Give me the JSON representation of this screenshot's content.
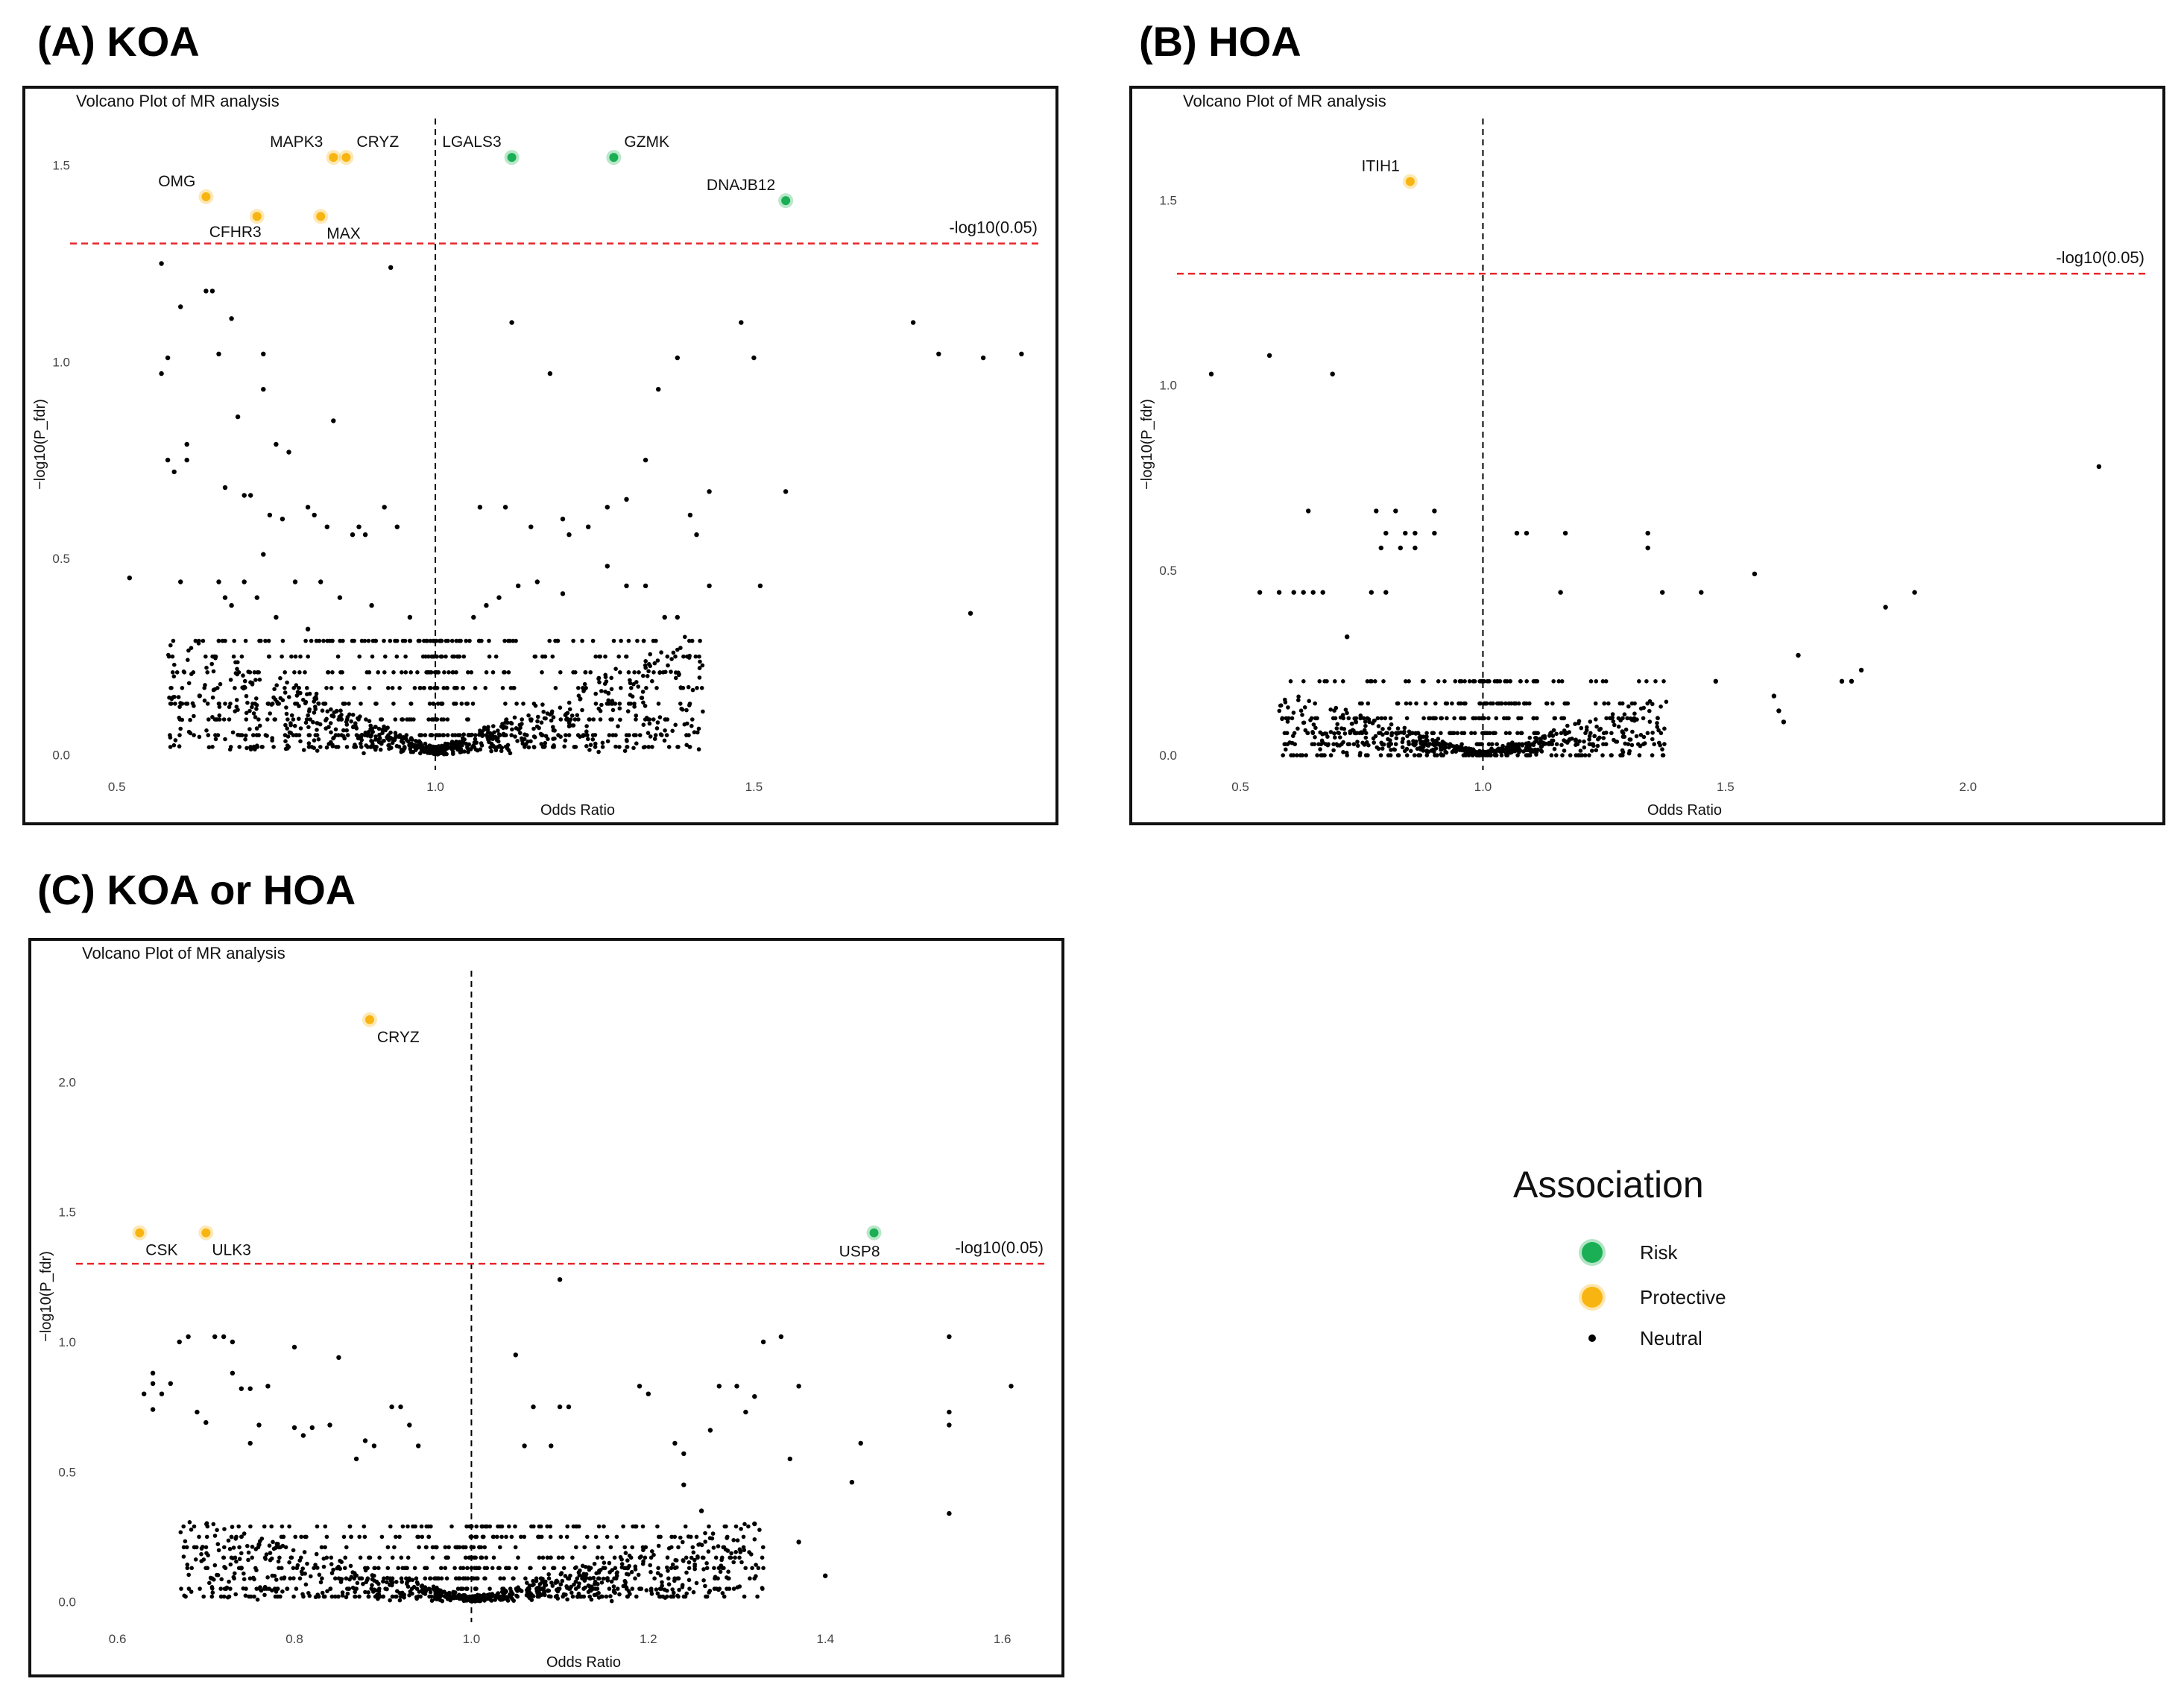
{
  "panels": {
    "a": {
      "label": "(A) KOA"
    },
    "b": {
      "label": "(B) HOA"
    },
    "c": {
      "label": "(C) KOA or HOA"
    }
  },
  "legend": {
    "title": "Association",
    "items": [
      {
        "key": "risk",
        "label": "Risk",
        "color": "#1aaf54"
      },
      {
        "key": "protective",
        "label": "Protective",
        "color": "#f8b512"
      },
      {
        "key": "neutral",
        "label": "Neutral",
        "color": "#000000"
      }
    ]
  },
  "chart_data": [
    {
      "id": "a",
      "type": "scatter",
      "title": "Volcano Plot of MR analysis",
      "xlabel": "Odds Ratio",
      "ylabel": "-log10(P_fdr)",
      "xlim": [
        0.45,
        1.95
      ],
      "ylim": [
        -0.02,
        1.6
      ],
      "xticks": [
        0.5,
        1.0,
        1.5
      ],
      "yticks": [
        0.0,
        0.5,
        1.0,
        1.5
      ],
      "vline_x": 1.0,
      "threshold": {
        "y": 1.301,
        "label": "-log10(0.05)"
      },
      "labeled_points": [
        {
          "gene": "MAPK3",
          "x": 0.84,
          "y": 1.52,
          "group": "protective",
          "label_pos": "above-left"
        },
        {
          "gene": "CRYZ",
          "x": 0.86,
          "y": 1.52,
          "group": "protective",
          "label_pos": "above-right"
        },
        {
          "gene": "LGALS3",
          "x": 1.12,
          "y": 1.52,
          "group": "risk",
          "label_pos": "above-left"
        },
        {
          "gene": "GZMK",
          "x": 1.28,
          "y": 1.52,
          "group": "risk",
          "label_pos": "above-right"
        },
        {
          "gene": "OMG",
          "x": 0.64,
          "y": 1.42,
          "group": "protective",
          "label_pos": "above-left"
        },
        {
          "gene": "DNAJB12",
          "x": 1.55,
          "y": 1.41,
          "group": "risk",
          "label_pos": "above-left"
        },
        {
          "gene": "CFHR3",
          "x": 0.72,
          "y": 1.37,
          "group": "protective",
          "label_pos": "below-left"
        },
        {
          "gene": "MAX",
          "x": 0.82,
          "y": 1.37,
          "group": "protective",
          "label_pos": "below-right"
        }
      ],
      "neutral_points": [
        [
          0.52,
          0.45
        ],
        [
          0.57,
          1.25
        ],
        [
          0.57,
          0.97
        ],
        [
          0.58,
          1.01
        ],
        [
          0.58,
          0.75
        ],
        [
          0.59,
          0.72
        ],
        [
          0.6,
          1.14
        ],
        [
          0.6,
          0.44
        ],
        [
          0.61,
          0.75
        ],
        [
          0.61,
          0.79
        ],
        [
          0.63,
          0.15
        ],
        [
          0.64,
          1.18
        ],
        [
          0.65,
          1.18
        ],
        [
          0.66,
          1.02
        ],
        [
          0.67,
          0.68
        ],
        [
          0.68,
          1.11
        ],
        [
          0.69,
          0.86
        ],
        [
          0.7,
          0.66
        ],
        [
          0.71,
          0.66
        ],
        [
          0.73,
          0.93
        ],
        [
          0.73,
          1.02
        ],
        [
          0.74,
          0.61
        ],
        [
          0.75,
          0.79
        ],
        [
          0.76,
          0.6
        ],
        [
          0.77,
          0.77
        ],
        [
          0.8,
          0.63
        ],
        [
          0.81,
          0.61
        ],
        [
          0.83,
          0.58
        ],
        [
          0.84,
          0.85
        ],
        [
          0.87,
          0.56
        ],
        [
          0.88,
          0.58
        ],
        [
          0.89,
          0.56
        ],
        [
          0.92,
          0.63
        ],
        [
          0.93,
          1.24
        ],
        [
          0.94,
          0.58
        ],
        [
          0.66,
          0.44
        ],
        [
          0.67,
          0.4
        ],
        [
          0.68,
          0.38
        ],
        [
          0.7,
          0.44
        ],
        [
          0.72,
          0.4
        ],
        [
          0.73,
          0.51
        ],
        [
          0.75,
          0.35
        ],
        [
          0.78,
          0.44
        ],
        [
          0.8,
          0.32
        ],
        [
          0.82,
          0.44
        ],
        [
          0.85,
          0.4
        ],
        [
          0.9,
          0.38
        ],
        [
          0.96,
          0.35
        ],
        [
          1.07,
          0.63
        ],
        [
          1.11,
          0.63
        ],
        [
          1.12,
          1.1
        ],
        [
          1.15,
          0.58
        ],
        [
          1.18,
          0.97
        ],
        [
          1.2,
          0.6
        ],
        [
          1.21,
          0.56
        ],
        [
          1.24,
          0.58
        ],
        [
          1.27,
          0.63
        ],
        [
          1.3,
          0.65
        ],
        [
          1.33,
          0.75
        ],
        [
          1.35,
          0.93
        ],
        [
          1.38,
          1.01
        ],
        [
          1.4,
          0.61
        ],
        [
          1.41,
          0.56
        ],
        [
          1.43,
          0.67
        ],
        [
          1.48,
          1.1
        ],
        [
          1.5,
          1.01
        ],
        [
          1.51,
          0.43
        ],
        [
          1.55,
          0.67
        ],
        [
          1.43,
          0.43
        ],
        [
          1.36,
          0.35
        ],
        [
          1.33,
          0.43
        ],
        [
          1.38,
          0.35
        ],
        [
          1.3,
          0.43
        ],
        [
          1.27,
          0.48
        ],
        [
          1.2,
          0.41
        ],
        [
          1.16,
          0.44
        ],
        [
          1.13,
          0.43
        ],
        [
          1.1,
          0.4
        ],
        [
          1.08,
          0.38
        ],
        [
          1.06,
          0.35
        ],
        [
          1.75,
          1.1
        ],
        [
          1.79,
          1.02
        ],
        [
          1.86,
          1.01
        ],
        [
          1.92,
          1.02
        ],
        [
          1.84,
          0.36
        ]
      ],
      "neutral_scatter_count": 1300
    },
    {
      "id": "b",
      "type": "scatter",
      "title": "Volcano Plot of MR analysis",
      "xlabel": "Odds Ratio",
      "ylabel": "-log10(P_fdr)",
      "xlim": [
        0.4,
        2.37
      ],
      "ylim": [
        -0.02,
        1.7
      ],
      "xticks": [
        0.5,
        1.0,
        1.5,
        2.0
      ],
      "yticks": [
        0.0,
        0.5,
        1.0,
        1.5
      ],
      "vline_x": 1.0,
      "threshold": {
        "y": 1.301,
        "label": "-log10(0.05)"
      },
      "labeled_points": [
        {
          "gene": "ITIH1",
          "x": 0.85,
          "y": 1.55,
          "group": "protective",
          "label_pos": "above-left"
        }
      ],
      "neutral_points": [
        [
          0.44,
          1.03
        ],
        [
          0.56,
          1.08
        ],
        [
          0.69,
          1.03
        ],
        [
          2.27,
          0.78
        ],
        [
          0.64,
          0.66
        ],
        [
          0.78,
          0.66
        ],
        [
          0.82,
          0.66
        ],
        [
          0.9,
          0.66
        ],
        [
          0.8,
          0.6
        ],
        [
          0.84,
          0.6
        ],
        [
          0.86,
          0.6
        ],
        [
          0.9,
          0.6
        ],
        [
          0.79,
          0.56
        ],
        [
          0.83,
          0.56
        ],
        [
          0.86,
          0.56
        ],
        [
          1.07,
          0.6
        ],
        [
          1.09,
          0.6
        ],
        [
          1.17,
          0.6
        ],
        [
          1.34,
          0.6
        ],
        [
          1.34,
          0.56
        ],
        [
          0.54,
          0.44
        ],
        [
          0.58,
          0.44
        ],
        [
          0.61,
          0.44
        ],
        [
          0.63,
          0.44
        ],
        [
          0.65,
          0.44
        ],
        [
          0.67,
          0.44
        ],
        [
          0.77,
          0.44
        ],
        [
          0.8,
          0.44
        ],
        [
          1.16,
          0.44
        ],
        [
          1.37,
          0.44
        ],
        [
          1.45,
          0.44
        ],
        [
          1.56,
          0.49
        ],
        [
          1.89,
          0.44
        ],
        [
          1.83,
          0.4
        ],
        [
          0.72,
          0.32
        ],
        [
          1.65,
          0.27
        ],
        [
          1.78,
          0.23
        ],
        [
          1.74,
          0.2
        ],
        [
          1.76,
          0.2
        ],
        [
          1.6,
          0.16
        ],
        [
          1.61,
          0.12
        ],
        [
          1.62,
          0.09
        ],
        [
          1.48,
          0.2
        ]
      ],
      "neutral_scatter_count": 900
    },
    {
      "id": "c",
      "type": "scatter",
      "title": "Volcano Plot of MR analysis",
      "xlabel": "Odds Ratio",
      "ylabel": "-log10(P_fdr)",
      "xlim": [
        0.57,
        1.65
      ],
      "ylim": [
        -0.05,
        2.4
      ],
      "xticks": [
        0.6,
        0.8,
        1.0,
        1.2,
        1.4,
        1.6
      ],
      "yticks": [
        0.0,
        0.5,
        1.0,
        1.5,
        2.0
      ],
      "vline_x": 1.0,
      "threshold": {
        "y": 1.301,
        "label": "-log10(0.05)"
      },
      "labeled_points": [
        {
          "gene": "CRYZ",
          "x": 0.885,
          "y": 2.24,
          "group": "protective",
          "label_pos": "below-right"
        },
        {
          "gene": "CSK",
          "x": 0.625,
          "y": 1.42,
          "group": "protective",
          "label_pos": "below-right"
        },
        {
          "gene": "ULK3",
          "x": 0.7,
          "y": 1.42,
          "group": "protective",
          "label_pos": "below-right"
        },
        {
          "gene": "USP8",
          "x": 1.455,
          "y": 1.42,
          "group": "risk",
          "label_pos": "below-left"
        }
      ],
      "neutral_points": [
        [
          0.63,
          0.8
        ],
        [
          0.64,
          0.88
        ],
        [
          0.64,
          0.84
        ],
        [
          0.64,
          0.74
        ],
        [
          0.65,
          0.8
        ],
        [
          0.66,
          0.84
        ],
        [
          0.67,
          1.0
        ],
        [
          0.68,
          1.02
        ],
        [
          0.69,
          0.73
        ],
        [
          0.7,
          0.69
        ],
        [
          0.71,
          1.02
        ],
        [
          0.72,
          1.02
        ],
        [
          0.73,
          1.0
        ],
        [
          0.73,
          0.88
        ],
        [
          0.74,
          0.82
        ],
        [
          0.75,
          0.82
        ],
        [
          0.77,
          0.83
        ],
        [
          0.76,
          0.68
        ],
        [
          0.75,
          0.61
        ],
        [
          0.8,
          0.98
        ],
        [
          0.8,
          0.67
        ],
        [
          0.81,
          0.64
        ],
        [
          0.82,
          0.67
        ],
        [
          0.84,
          0.68
        ],
        [
          0.85,
          0.94
        ],
        [
          0.87,
          0.55
        ],
        [
          0.88,
          0.62
        ],
        [
          0.89,
          0.6
        ],
        [
          0.91,
          0.75
        ],
        [
          0.92,
          0.75
        ],
        [
          0.93,
          0.68
        ],
        [
          0.94,
          0.6
        ],
        [
          1.05,
          0.95
        ],
        [
          1.07,
          0.75
        ],
        [
          1.1,
          1.24
        ],
        [
          1.1,
          0.75
        ],
        [
          1.11,
          0.75
        ],
        [
          1.09,
          0.6
        ],
        [
          1.06,
          0.6
        ],
        [
          1.19,
          0.83
        ],
        [
          1.2,
          0.8
        ],
        [
          1.23,
          0.61
        ],
        [
          1.24,
          0.57
        ],
        [
          1.27,
          0.66
        ],
        [
          1.28,
          0.83
        ],
        [
          1.3,
          0.83
        ],
        [
          1.31,
          0.73
        ],
        [
          1.32,
          0.79
        ],
        [
          1.33,
          1.0
        ],
        [
          1.35,
          1.02
        ],
        [
          1.36,
          0.55
        ],
        [
          1.37,
          0.83
        ],
        [
          1.43,
          0.46
        ],
        [
          1.44,
          0.61
        ],
        [
          1.54,
          1.02
        ],
        [
          1.54,
          0.73
        ],
        [
          1.54,
          0.68
        ],
        [
          1.54,
          0.34
        ],
        [
          1.61,
          0.83
        ],
        [
          1.37,
          0.23
        ],
        [
          1.4,
          0.1
        ],
        [
          1.32,
          0.3
        ],
        [
          1.26,
          0.35
        ],
        [
          1.24,
          0.45
        ],
        [
          0.74,
          0.13
        ],
        [
          0.76,
          0.22
        ]
      ],
      "neutral_scatter_count": 1300
    }
  ]
}
